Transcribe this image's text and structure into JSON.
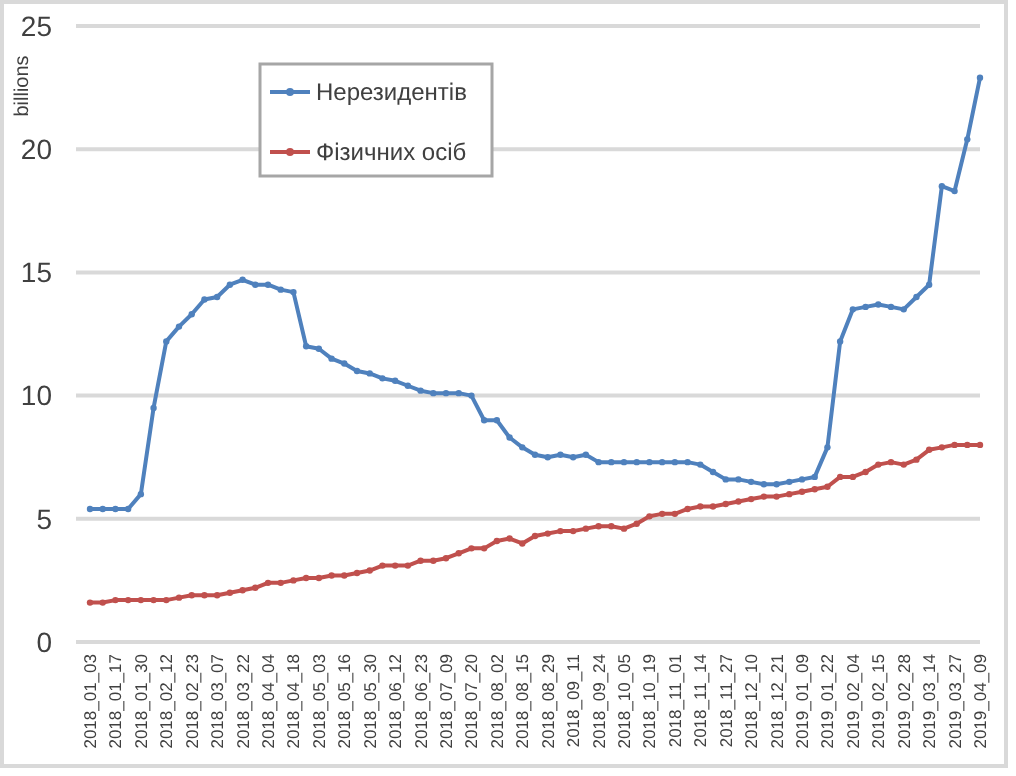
{
  "chart_data": {
    "type": "line",
    "ylabel": "billions",
    "categories": [
      "2018_01_03",
      null,
      "2018_01_17",
      null,
      "2018_01_30",
      null,
      "2018_02_12",
      null,
      "2018_02_23",
      null,
      "2018_03_07",
      null,
      "2018_03_22",
      null,
      "2018_04_04",
      null,
      "2018_04_18",
      null,
      "2018_05_03",
      null,
      "2018_05_16",
      null,
      "2018_05_30",
      null,
      "2018_06_12",
      null,
      "2018_06_23",
      null,
      "2018_07_09",
      null,
      "2018_07_20",
      null,
      "2018_08_02",
      null,
      "2018_08_15",
      null,
      "2018_08_29",
      null,
      "2018_09_11",
      null,
      "2018_09_24",
      null,
      "2018_10_05",
      null,
      "2018_10_19",
      null,
      "2018_11_01",
      null,
      "2018_11_14",
      null,
      "2018_11_27",
      null,
      "2018_12_10",
      null,
      "2018_12_21",
      null,
      "2019_01_09",
      null,
      "2019_01_22",
      null,
      "2019_02_04",
      null,
      "2019_02_15",
      null,
      "2019_02_28",
      null,
      "2019_03_14",
      null,
      "2019_03_27",
      null,
      "2019_04_09"
    ],
    "series": [
      {
        "name": "Нерезидентів",
        "color": "#4f81bd",
        "values": [
          5.4,
          5.4,
          5.4,
          5.4,
          6.0,
          9.5,
          12.2,
          12.8,
          13.3,
          13.9,
          14.0,
          14.5,
          14.7,
          14.5,
          14.5,
          14.3,
          14.2,
          12.0,
          11.9,
          11.5,
          11.3,
          11.0,
          10.9,
          10.7,
          10.6,
          10.4,
          10.2,
          10.1,
          10.1,
          10.1,
          10.0,
          9.0,
          9.0,
          8.3,
          7.9,
          7.6,
          7.5,
          7.6,
          7.5,
          7.6,
          7.3,
          7.3,
          7.3,
          7.3,
          7.3,
          7.3,
          7.3,
          7.3,
          7.2,
          6.9,
          6.6,
          6.6,
          6.5,
          6.4,
          6.4,
          6.5,
          6.6,
          6.7,
          7.9,
          12.2,
          13.5,
          13.6,
          13.7,
          13.6,
          13.5,
          14.0,
          14.5,
          18.5,
          18.3,
          20.4,
          22.9
        ]
      },
      {
        "name": "Фізичних осіб",
        "color": "#c0504d",
        "values": [
          1.6,
          1.6,
          1.7,
          1.7,
          1.7,
          1.7,
          1.7,
          1.8,
          1.9,
          1.9,
          1.9,
          2.0,
          2.1,
          2.2,
          2.4,
          2.4,
          2.5,
          2.6,
          2.6,
          2.7,
          2.7,
          2.8,
          2.9,
          3.1,
          3.1,
          3.1,
          3.3,
          3.3,
          3.4,
          3.6,
          3.8,
          3.8,
          4.1,
          4.2,
          4.0,
          4.3,
          4.4,
          4.5,
          4.5,
          4.6,
          4.7,
          4.7,
          4.6,
          4.8,
          5.1,
          5.2,
          5.2,
          5.4,
          5.5,
          5.5,
          5.6,
          5.7,
          5.8,
          5.9,
          5.9,
          6.0,
          6.1,
          6.2,
          6.3,
          6.7,
          6.7,
          6.9,
          7.2,
          7.3,
          7.2,
          7.4,
          7.8,
          7.9,
          8.0,
          8.0,
          8.0
        ]
      }
    ],
    "ylim": [
      0,
      25
    ],
    "yticks": [
      0,
      5,
      10,
      15,
      20,
      25
    ],
    "grid": "y",
    "legend": "top left",
    "marker": "circle",
    "line_style": "solid"
  }
}
